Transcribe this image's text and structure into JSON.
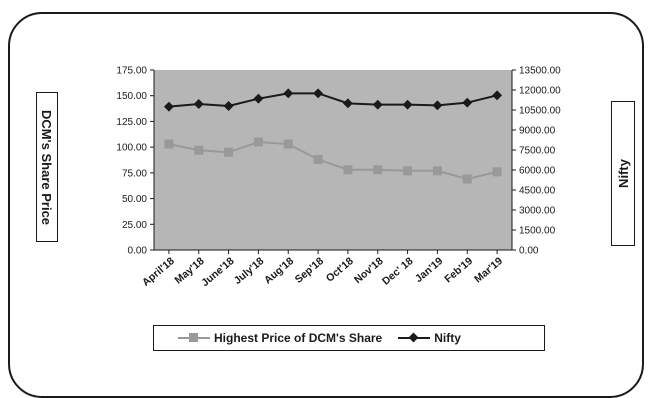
{
  "chart_data": {
    "type": "line",
    "categories": [
      "April'18",
      "May'18",
      "June'18",
      "July'18",
      "Aug'18",
      "Sep'18",
      "Oct'18",
      "Nov'18",
      "Dec' 18",
      "Jan'19",
      "Feb'19",
      "Mar'19"
    ],
    "series": [
      {
        "name": "Highest Price of DCM's Share",
        "axis": "left",
        "color": "#999999",
        "marker": "square",
        "values": [
          103,
          97,
          95,
          105,
          103,
          88,
          78,
          78,
          77,
          77,
          69,
          76
        ]
      },
      {
        "name": "Nifty",
        "axis": "right",
        "color": "#1a1a1a",
        "marker": "diamond",
        "values": [
          10750,
          10950,
          10800,
          11350,
          11750,
          11750,
          11000,
          10900,
          10900,
          10850,
          11050,
          11600
        ]
      }
    ],
    "ylabel": "DCM's Share Price",
    "y2label": "Nifty",
    "ylim": [
      0,
      175
    ],
    "y2lim": [
      0,
      13500
    ],
    "yticks": [
      "0.00",
      "25.00",
      "50.00",
      "75.00",
      "100.00",
      "125.00",
      "150.00",
      "175.00"
    ],
    "y2ticks": [
      "0.00",
      "1500.00",
      "3000.00",
      "4500.00",
      "6000.00",
      "7500.00",
      "9000.00",
      "10500.00",
      "12000.00",
      "13500.00"
    ],
    "plot_background": "#b6b6b6",
    "grid": false,
    "legend_position": "bottom"
  }
}
